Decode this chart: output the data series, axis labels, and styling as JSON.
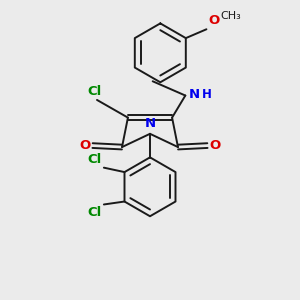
{
  "bg_color": "#ebebeb",
  "bond_color": "#1a1a1a",
  "bond_width": 1.4,
  "N_color": "#0000ee",
  "O_color": "#dd0000",
  "Cl_color": "#008800",
  "figsize": [
    3.0,
    3.0
  ],
  "dpi": 100,
  "xlim": [
    0,
    10
  ],
  "ylim": [
    0,
    10
  ]
}
